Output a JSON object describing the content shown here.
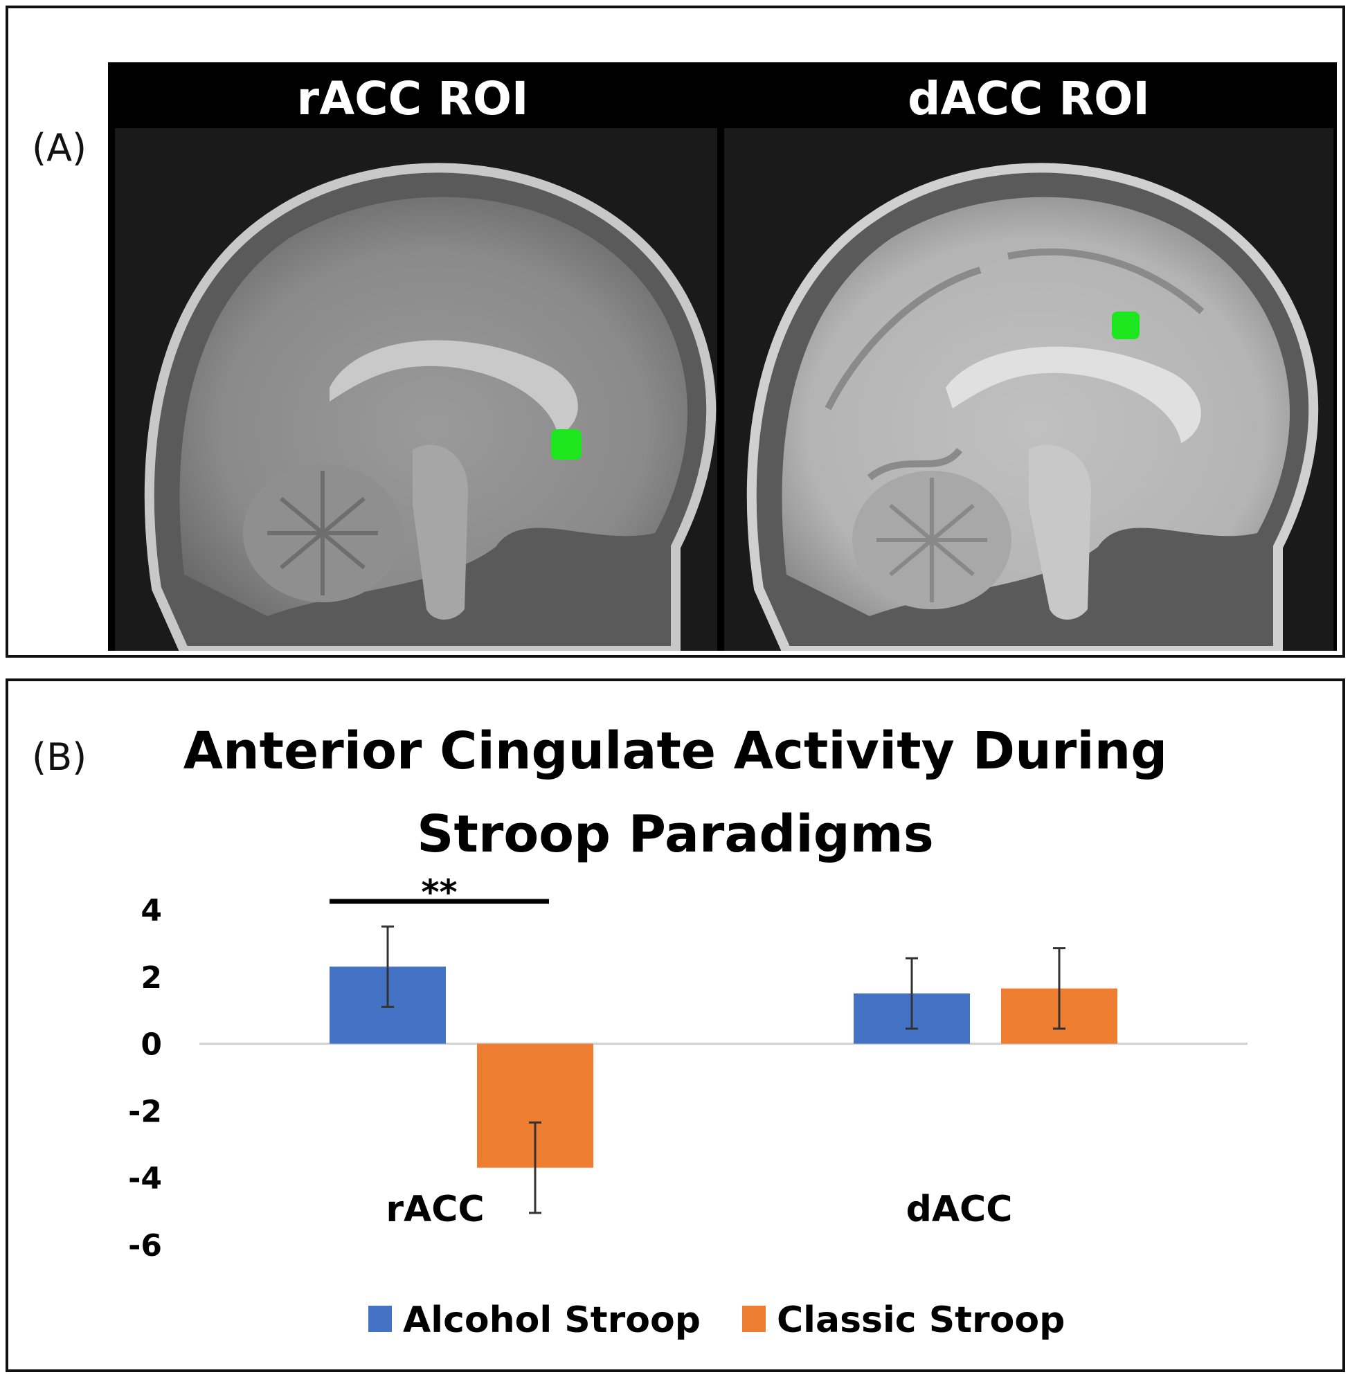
{
  "panel_a": {
    "label": "(A)",
    "left_title": "rACC ROI",
    "right_title": "dACC ROI",
    "roi_color": "#1ee61e"
  },
  "panel_b": {
    "label": "(B)"
  },
  "chart_data": {
    "type": "bar",
    "title": "Anterior Cingulate Activity During Stroop Paradigms",
    "title_lines": [
      "Anterior Cingulate Activity During",
      "Stroop Paradigms"
    ],
    "categories": [
      "rACC",
      "dACC"
    ],
    "series": [
      {
        "name": "Alcohol Stroop",
        "color": "#4472c4",
        "values": [
          2.3,
          1.5
        ],
        "error": [
          1.2,
          1.05
        ]
      },
      {
        "name": "Classic Stroop",
        "color": "#ed7d31",
        "values": [
          -3.7,
          1.65
        ],
        "error": [
          1.35,
          1.2
        ]
      }
    ],
    "ylim": [
      -6,
      4
    ],
    "yticks": [
      4,
      2,
      0,
      -2,
      -4,
      -6
    ],
    "xlabel": "",
    "ylabel": "",
    "legend": "bottom",
    "significance": {
      "label": "**",
      "category": "rACC"
    }
  }
}
